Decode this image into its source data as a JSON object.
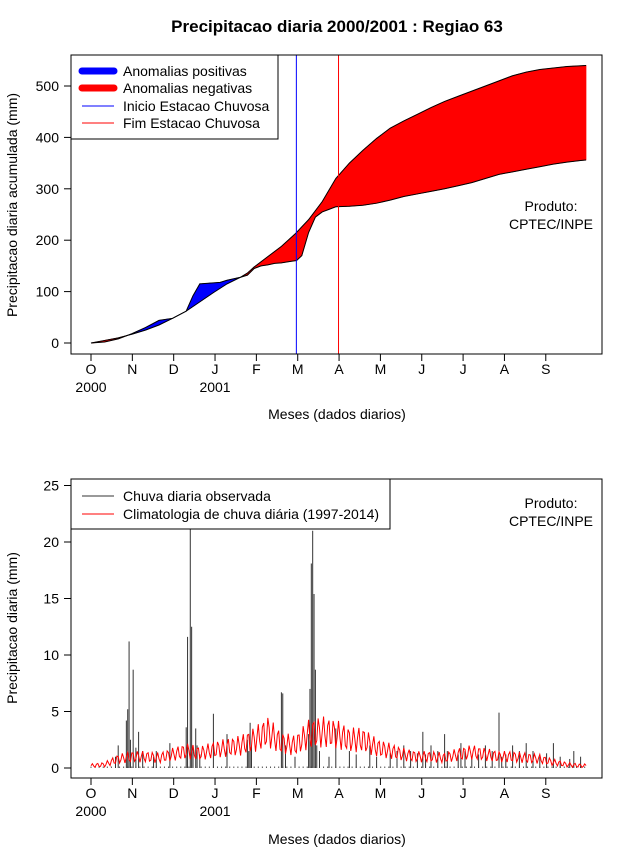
{
  "title": "Precipitacao diaria 2000/2001 : Regiao 63",
  "chart_data": [
    {
      "type": "area",
      "ylabel": "Precipitacao diaria acumulada (mm)",
      "xlabel": "Meses (dados diarios)",
      "ylim": [
        0,
        550
      ],
      "yticks": [
        0,
        100,
        200,
        300,
        400,
        500
      ],
      "months": [
        "O",
        "N",
        "D",
        "J",
        "F",
        "M",
        "A",
        "M",
        "J",
        "J",
        "A",
        "S"
      ],
      "years": [
        {
          "label": "2000",
          "month_index": 0
        },
        {
          "label": "2001",
          "month_index": 3
        }
      ],
      "series": [
        {
          "name": "observed_cumulative",
          "days": [
            0,
            10,
            20,
            30,
            40,
            50,
            60,
            70,
            75,
            80,
            85,
            90,
            95,
            100,
            105,
            110,
            115,
            120,
            125,
            130,
            135,
            140,
            145,
            150,
            151,
            155,
            160,
            165,
            170,
            175,
            180,
            190,
            200,
            210,
            220,
            230,
            240,
            250,
            260,
            270,
            280,
            290,
            300,
            310,
            320,
            330,
            340,
            350,
            360,
            364
          ],
          "values": [
            0,
            2,
            8,
            18,
            30,
            44,
            48,
            62,
            92,
            115,
            116,
            117,
            118,
            122,
            125,
            128,
            132,
            145,
            150,
            152,
            155,
            156,
            158,
            160,
            160,
            170,
            215,
            245,
            255,
            260,
            265,
            266,
            268,
            272,
            278,
            285,
            290,
            295,
            300,
            306,
            312,
            320,
            328,
            333,
            338,
            343,
            348,
            352,
            355,
            356
          ]
        },
        {
          "name": "climatology_cumulative",
          "days": [
            0,
            10,
            20,
            30,
            40,
            50,
            60,
            70,
            80,
            90,
            100,
            110,
            115,
            120,
            130,
            140,
            150,
            160,
            170,
            180,
            190,
            200,
            210,
            220,
            230,
            240,
            250,
            260,
            270,
            280,
            290,
            300,
            310,
            320,
            330,
            340,
            350,
            364
          ],
          "values": [
            0,
            5,
            10,
            17,
            25,
            35,
            48,
            62,
            80,
            98,
            115,
            128,
            136,
            148,
            168,
            188,
            212,
            240,
            275,
            320,
            350,
            375,
            398,
            418,
            432,
            445,
            458,
            470,
            480,
            490,
            500,
            510,
            520,
            527,
            532,
            535,
            538,
            540
          ]
        }
      ],
      "legend": [
        {
          "label": "Anomalias positivas",
          "color": "#0000ff"
        },
        {
          "label": "Anomalias negativas",
          "color": "#ff0000"
        },
        {
          "label": "Inicio Estacao Chuvosa",
          "color": "#0000ff"
        },
        {
          "label": "Fim Estacao Chuvosa",
          "color": "#ff0000"
        }
      ],
      "season_start_day": 151,
      "season_end_day": 182,
      "annotation": [
        "Produto:",
        "CPTEC/INPE"
      ]
    },
    {
      "type": "bar",
      "ylabel": "Precipitacao diaria (mm)",
      "xlabel": "Meses (dados diarios)",
      "ylim": [
        0,
        25
      ],
      "yticks": [
        0,
        5,
        10,
        15,
        20,
        25
      ],
      "months": [
        "O",
        "N",
        "D",
        "J",
        "F",
        "M",
        "A",
        "M",
        "J",
        "J",
        "A",
        "S"
      ],
      "years": [
        {
          "label": "2000",
          "month_index": 0
        },
        {
          "label": "2001",
          "month_index": 3
        }
      ],
      "observed_days": [
        18,
        20,
        26,
        27,
        28,
        29,
        31,
        33,
        35,
        38,
        46,
        48,
        58,
        70,
        71,
        73,
        74,
        75,
        77,
        78,
        80,
        90,
        100,
        115,
        116,
        117,
        118,
        140,
        141,
        143,
        150,
        160,
        161,
        162,
        163,
        164,
        165,
        166,
        168,
        175,
        180,
        190,
        195,
        205,
        210,
        220,
        225,
        230,
        235,
        240,
        244,
        246,
        250,
        255,
        260,
        262,
        270,
        272,
        275,
        280,
        285,
        290,
        295,
        300,
        302,
        305,
        310,
        315,
        320,
        325,
        330,
        335,
        340,
        345,
        352,
        355,
        360
      ],
      "observed_values": [
        1.0,
        2.0,
        4.2,
        5.2,
        11.2,
        2.5,
        8.7,
        1.8,
        3.2,
        1.5,
        1.0,
        1.5,
        2.2,
        3.6,
        11.6,
        21.5,
        12.5,
        1.8,
        3.5,
        2.0,
        1.2,
        4.8,
        3.0,
        2.5,
        1.5,
        4.0,
        2.0,
        6.7,
        6.6,
        2.0,
        1.0,
        3.0,
        7.0,
        18.1,
        21.0,
        15.4,
        8.7,
        2.0,
        1.5,
        1.0,
        3.5,
        1.5,
        1.2,
        2.0,
        1.0,
        1.3,
        1.5,
        2.0,
        1.5,
        1.3,
        3.2,
        1.2,
        2.0,
        1.5,
        3.0,
        1.5,
        1.2,
        2.2,
        1.5,
        1.0,
        1.2,
        2.0,
        1.5,
        4.9,
        1.0,
        1.2,
        2.0,
        1.5,
        2.2,
        1.5,
        1.0,
        1.3,
        2.2,
        1.0,
        0.8,
        1.5,
        1.0
      ],
      "climatology_days": [
        0,
        10,
        20,
        30,
        40,
        50,
        60,
        70,
        80,
        90,
        100,
        110,
        120,
        130,
        140,
        150,
        160,
        170,
        180,
        190,
        200,
        210,
        220,
        230,
        240,
        250,
        260,
        270,
        280,
        290,
        300,
        310,
        320,
        330,
        340,
        350,
        360,
        364
      ],
      "climatology_values": [
        0.2,
        0.3,
        0.8,
        1.0,
        1.0,
        0.9,
        1.2,
        1.5,
        1.3,
        1.6,
        1.8,
        2.0,
        2.5,
        3.2,
        2.2,
        2.0,
        3.0,
        3.2,
        3.0,
        2.5,
        2.5,
        1.8,
        1.5,
        1.2,
        1.0,
        1.0,
        0.9,
        1.2,
        1.4,
        1.2,
        1.0,
        1.0,
        0.9,
        0.8,
        0.5,
        0.3,
        0.2,
        0.2
      ],
      "legend": [
        {
          "label": "Chuva diaria observada",
          "color": "#333333"
        },
        {
          "label": "Climatologia de chuva diária (1997-2014)",
          "color": "#ff0000"
        }
      ],
      "annotation": [
        "Produto:",
        "CPTEC/INPE"
      ]
    }
  ]
}
